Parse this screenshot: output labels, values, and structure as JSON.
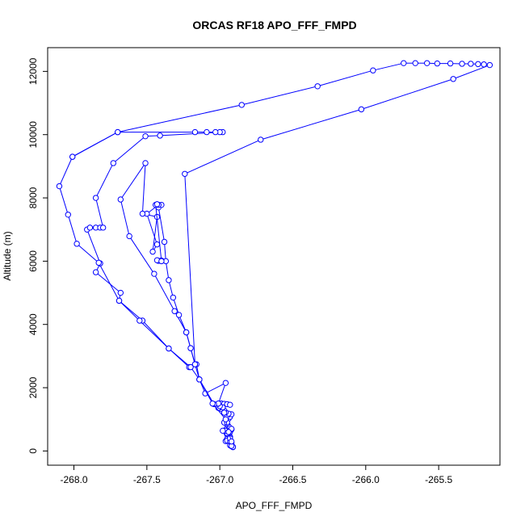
{
  "chart_data": {
    "type": "line",
    "title": "ORCAS RF18 APO_FFF_FMPD",
    "xlabel": "APO_FFF_FMPD",
    "ylabel": "Altitude (m)",
    "x_ticks": [
      "-268.0",
      "-267.5",
      "-267.0",
      "-266.5",
      "-266.0",
      "-265.5"
    ],
    "y_ticks": [
      "0",
      "2000",
      "4000",
      "6000",
      "8000",
      "10000",
      "12000"
    ],
    "xlim": [
      -268.18,
      -265.08
    ],
    "ylim": [
      -450,
      12750
    ],
    "grid": false,
    "legend": "none",
    "marker": "open-circle",
    "series_color": "#0000ff",
    "series": [
      {
        "points": [
          [
            -266.91,
            120
          ],
          [
            -266.92,
            150
          ],
          [
            -266.93,
            180
          ],
          [
            -266.92,
            250
          ],
          [
            -266.94,
            320
          ],
          [
            -266.96,
            310
          ],
          [
            -266.95,
            380
          ],
          [
            -266.93,
            450
          ],
          [
            -266.94,
            520
          ],
          [
            -266.95,
            560
          ],
          [
            -266.93,
            600
          ],
          [
            -266.94,
            620
          ],
          [
            -266.96,
            640
          ],
          [
            -266.92,
            680
          ],
          [
            -266.93,
            720
          ],
          [
            -266.94,
            780
          ],
          [
            -266.95,
            850
          ],
          [
            -266.97,
            900
          ],
          [
            -266.95,
            960
          ],
          [
            -266.94,
            1020
          ],
          [
            -266.93,
            1080
          ],
          [
            -266.95,
            1120
          ],
          [
            -266.92,
            1160
          ],
          [
            -266.94,
            1180
          ],
          [
            -266.96,
            1220
          ],
          [
            -266.97,
            1280
          ],
          [
            -266.99,
            1330
          ],
          [
            -267.0,
            1380
          ],
          [
            -267.01,
            1440
          ],
          [
            -267.0,
            1480
          ],
          [
            -266.99,
            1500
          ],
          [
            -266.97,
            1490
          ],
          [
            -266.95,
            1480
          ],
          [
            -266.93,
            1460
          ],
          [
            -266.98,
            1380
          ],
          [
            -267.01,
            1360
          ],
          [
            -267.0,
            1420
          ],
          [
            -267.02,
            1470
          ],
          [
            -267.01,
            1500
          ],
          [
            -266.96,
            2150
          ],
          [
            -267.1,
            1820
          ],
          [
            -267.14,
            2260
          ],
          [
            -267.16,
            2740
          ],
          [
            -267.21,
            2650
          ],
          [
            -267.35,
            3240
          ],
          [
            -267.53,
            4120
          ],
          [
            -267.69,
            4750
          ],
          [
            -267.68,
            5000
          ],
          [
            -267.85,
            5650
          ],
          [
            -267.82,
            5930
          ],
          [
            -267.91,
            7000
          ],
          [
            -267.89,
            7060
          ],
          [
            -267.85,
            7060
          ],
          [
            -267.82,
            7060
          ],
          [
            -267.8,
            7060
          ],
          [
            -267.85,
            8000
          ],
          [
            -267.73,
            9100
          ],
          [
            -267.51,
            9950
          ],
          [
            -267.41,
            9970
          ],
          [
            -266.98,
            10080
          ],
          [
            -267.0,
            10080
          ],
          [
            -267.03,
            10080
          ],
          [
            -267.09,
            10080
          ],
          [
            -267.17,
            10080
          ],
          [
            -267.7,
            10080
          ],
          [
            -268.01,
            9300
          ],
          [
            -268.1,
            8370
          ],
          [
            -268.04,
            7470
          ],
          [
            -267.98,
            6550
          ],
          [
            -267.83,
            5950
          ],
          [
            -267.69,
            4750
          ],
          [
            -267.55,
            4120
          ],
          [
            -267.35,
            3240
          ],
          [
            -267.2,
            2650
          ],
          [
            -267.14,
            2260
          ],
          [
            -267.04,
            1480
          ],
          [
            -266.97,
            1210
          ],
          [
            -266.95,
            900
          ],
          [
            -266.98,
            640
          ],
          [
            -266.95,
            330
          ],
          [
            -266.93,
            300
          ],
          [
            -266.94,
            600
          ],
          [
            -266.92,
            700
          ],
          [
            -266.93,
            400
          ],
          [
            -266.91,
            130
          ],
          [
            -266.92,
            160
          ]
        ]
      },
      {
        "points": [
          [
            -266.92,
            300
          ],
          [
            -266.94,
            600
          ],
          [
            -266.96,
            1000
          ],
          [
            -267.05,
            1500
          ],
          [
            -267.14,
            2260
          ],
          [
            -267.17,
            2740
          ],
          [
            -267.2,
            3250
          ],
          [
            -267.23,
            3750
          ],
          [
            -267.28,
            4300
          ],
          [
            -267.32,
            4850
          ],
          [
            -267.35,
            5400
          ],
          [
            -267.37,
            6000
          ],
          [
            -267.38,
            6610
          ],
          [
            -267.42,
            7700
          ],
          [
            -267.4,
            7780
          ],
          [
            -267.42,
            7780
          ],
          [
            -267.5,
            7500
          ],
          [
            -267.43,
            6530
          ],
          [
            -267.46,
            6300
          ],
          [
            -267.43,
            7400
          ],
          [
            -267.53,
            7500
          ],
          [
            -267.51,
            9100
          ],
          [
            -267.68,
            7950
          ],
          [
            -267.62,
            6790
          ],
          [
            -267.45,
            5600
          ],
          [
            -267.31,
            4420
          ],
          [
            -267.23,
            3750
          ],
          [
            -267.2,
            3250
          ],
          [
            -267.17,
            2740
          ],
          [
            -267.24,
            8760
          ],
          [
            -266.72,
            9840
          ],
          [
            -266.03,
            10800
          ],
          [
            -265.4,
            11760
          ],
          [
            -265.15,
            12200
          ],
          [
            -265.19,
            12220
          ],
          [
            -265.23,
            12230
          ],
          [
            -265.28,
            12240
          ],
          [
            -265.34,
            12240
          ],
          [
            -265.42,
            12250
          ],
          [
            -265.51,
            12250
          ],
          [
            -265.58,
            12260
          ],
          [
            -265.66,
            12260
          ],
          [
            -265.74,
            12260
          ],
          [
            -265.95,
            12030
          ],
          [
            -266.33,
            11530
          ],
          [
            -266.85,
            10940
          ],
          [
            -267.7,
            10080
          ],
          [
            -268.01,
            9300
          ]
        ]
      },
      {
        "points": [
          [
            -267.42,
            6010
          ],
          [
            -267.4,
            6020
          ],
          [
            -267.43,
            6030
          ],
          [
            -267.4,
            6000
          ],
          [
            -267.44,
            7780
          ],
          [
            -267.43,
            7800
          ]
        ]
      }
    ]
  }
}
